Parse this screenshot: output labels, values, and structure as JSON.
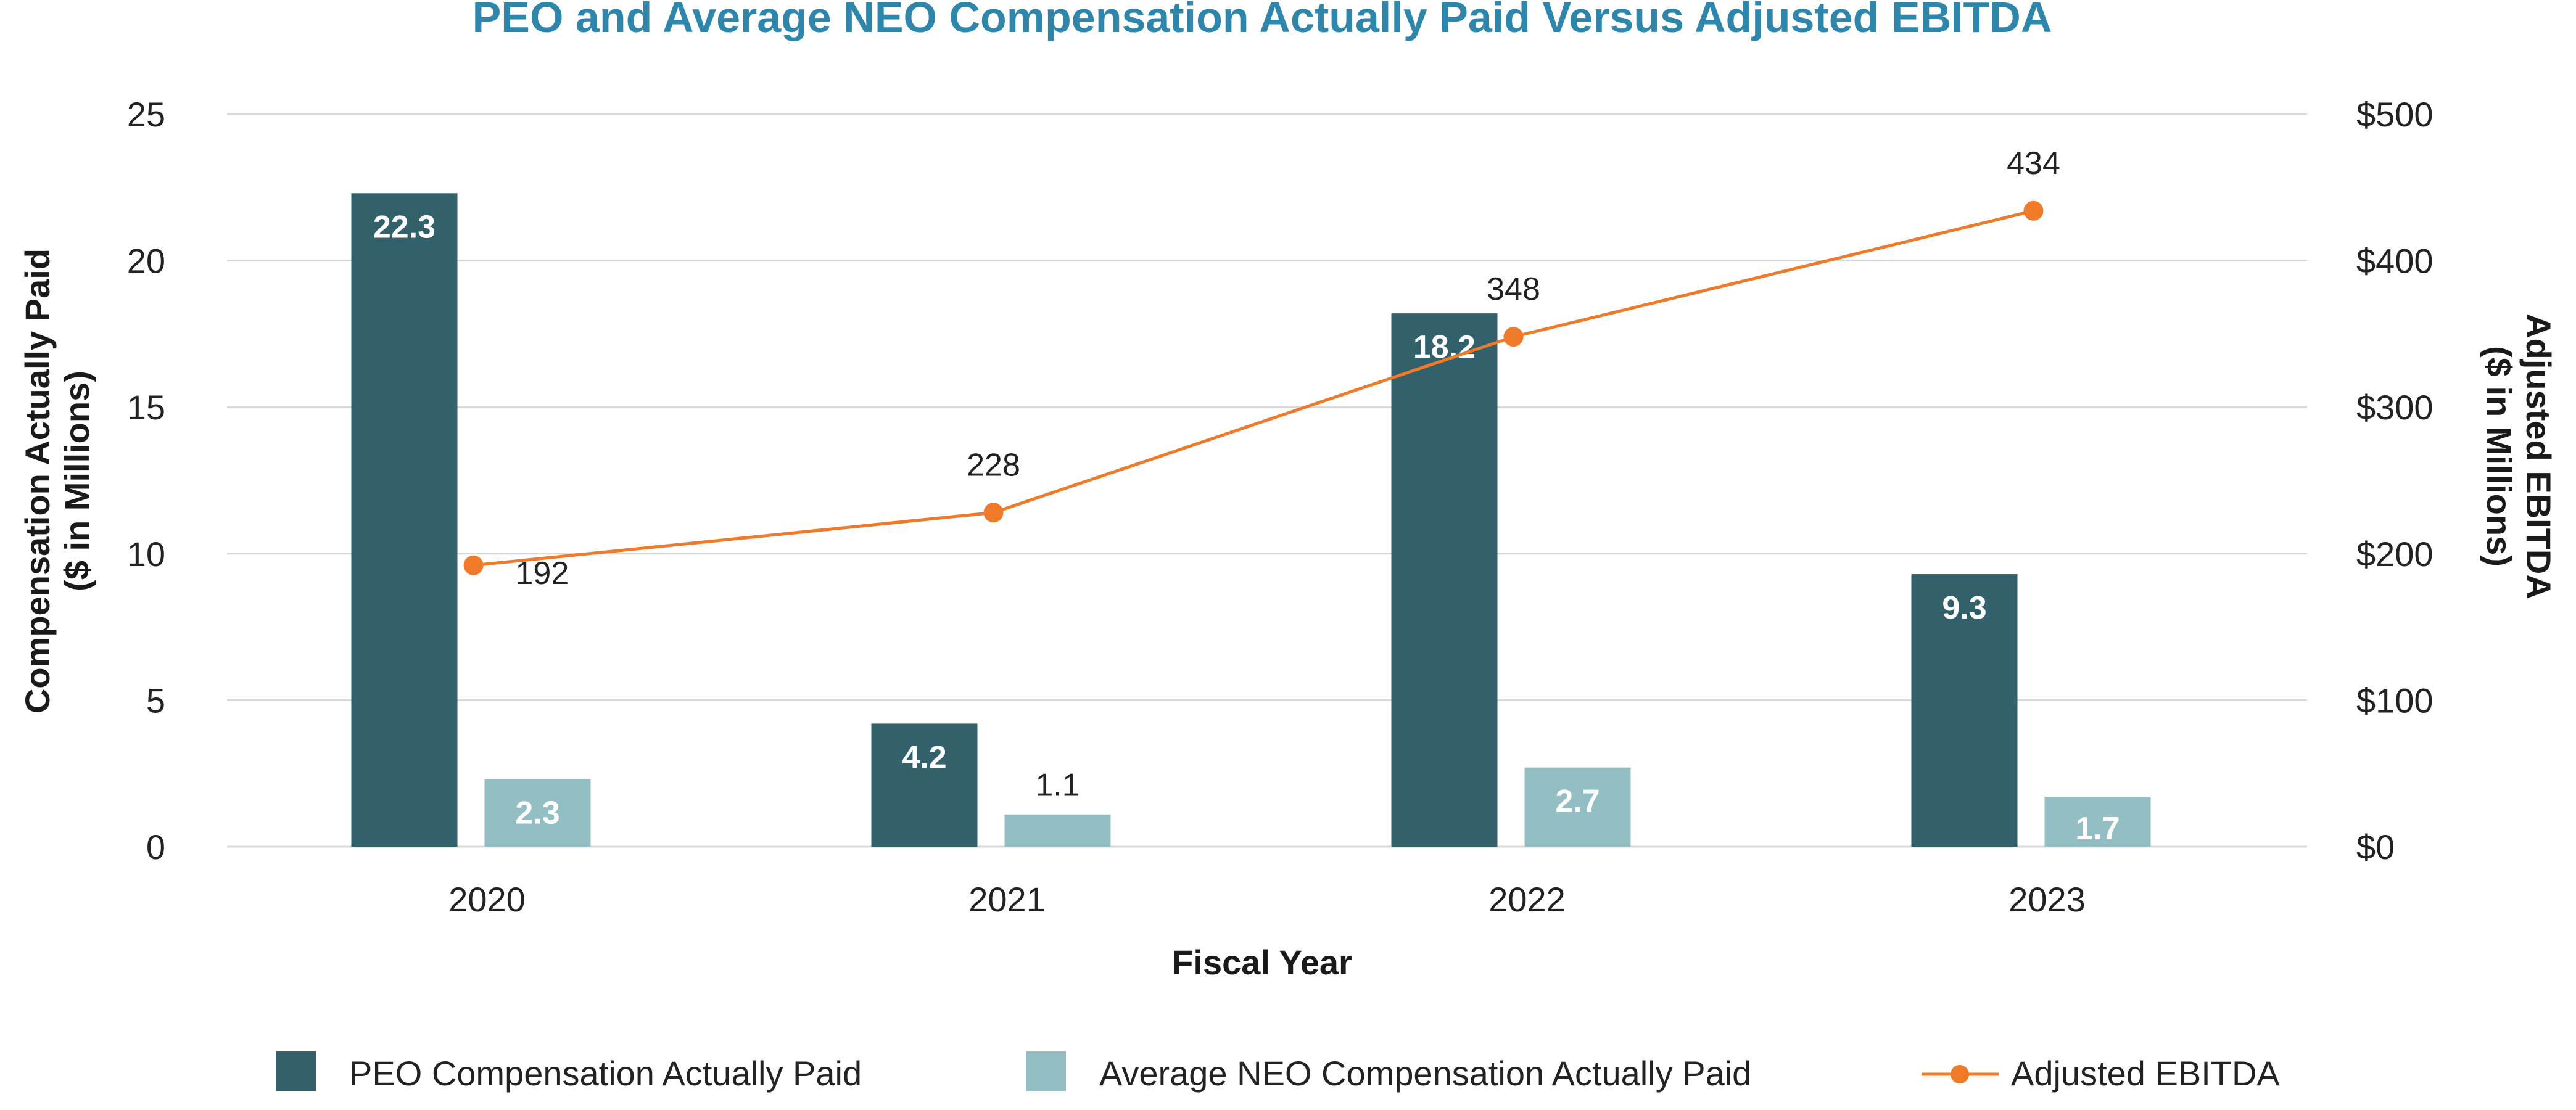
{
  "chart_data": {
    "type": "bar",
    "title": "PEO and Average NEO Compensation Actually Paid Versus Adjusted EBITDA",
    "xlabel": "Fiscal Year",
    "ylabel_left_line1": "Compensation Actually Paid",
    "ylabel_left_line2": "($ in Millions)",
    "ylabel_right_line1": "Adjusted EBITDA",
    "ylabel_right_line2": "($ in Millions)",
    "categories": [
      "2020",
      "2021",
      "2022",
      "2023"
    ],
    "ylim_left": [
      0,
      25
    ],
    "ylim_right": [
      0,
      500
    ],
    "left_ticks": [
      "0",
      "5",
      "10",
      "15",
      "20",
      "25"
    ],
    "right_ticks": [
      "$0",
      "$100",
      "$200",
      "$300",
      "$400",
      "$500"
    ],
    "grid": true,
    "legend_position": "bottom",
    "series": [
      {
        "name": "PEO Compensation Actually Paid",
        "type": "bar",
        "axis": "left",
        "color": "#33616b",
        "values": [
          22.3,
          4.2,
          18.2,
          9.3
        ],
        "labels": [
          "22.3",
          "4.2",
          "18.2",
          "9.3"
        ]
      },
      {
        "name": "Average NEO Compensation Actually Paid",
        "type": "bar",
        "axis": "left",
        "color": "#93bec3",
        "values": [
          2.3,
          1.1,
          2.7,
          1.7
        ],
        "labels": [
          "2.3",
          "1.1",
          "2.7",
          "1.7"
        ]
      },
      {
        "name": "Adjusted EBITDA",
        "type": "line",
        "axis": "right",
        "color": "#ee7a2a",
        "values": [
          192,
          228,
          348,
          434
        ],
        "labels": [
          "192",
          "228",
          "348",
          "434"
        ]
      }
    ]
  }
}
